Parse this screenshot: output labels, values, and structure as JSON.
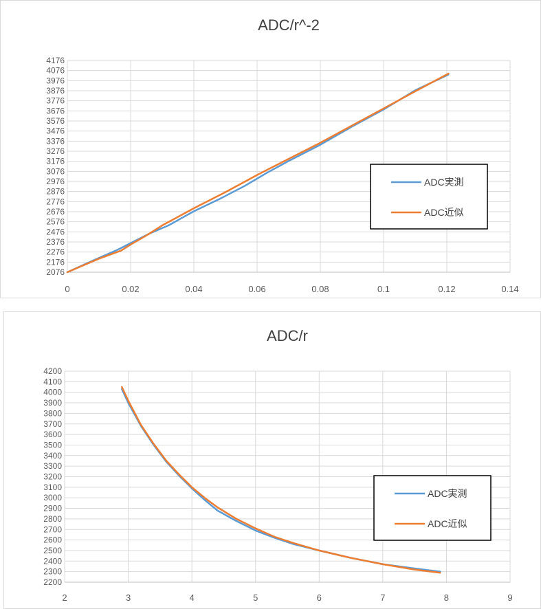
{
  "chart_data": [
    {
      "type": "line",
      "title": "ADC/r^-2",
      "xlabel": "",
      "ylabel": "",
      "xlim": [
        0,
        0.14
      ],
      "ylim": [
        2076,
        4176
      ],
      "x_ticks": [
        "0",
        "0.02",
        "0.04",
        "0.06",
        "0.08",
        "0.1",
        "0.12",
        "0.14"
      ],
      "y_ticks": [
        "2076",
        "2176",
        "2276",
        "2376",
        "2476",
        "2576",
        "2676",
        "2776",
        "2876",
        "2976",
        "3076",
        "3176",
        "3276",
        "3376",
        "3476",
        "3576",
        "3676",
        "3776",
        "3876",
        "3976",
        "4076",
        "4176"
      ],
      "grid": true,
      "legend_position": "right",
      "series": [
        {
          "name": "ADC実測",
          "color": "#5b9bd5",
          "x": [
            0,
            0.008,
            0.016,
            0.021,
            0.026,
            0.032,
            0.04,
            0.048,
            0.056,
            0.063,
            0.07,
            0.08,
            0.09,
            0.1,
            0.11,
            0.1205
          ],
          "y": [
            2076,
            2190,
            2300,
            2380,
            2460,
            2540,
            2680,
            2800,
            2930,
            3060,
            3180,
            3340,
            3520,
            3690,
            3880,
            4036
          ]
        },
        {
          "name": "ADC近似",
          "color": "#ed7d31",
          "x": [
            0,
            0.01,
            0.017,
            0.02,
            0.025,
            0.03,
            0.04,
            0.05,
            0.06,
            0.07,
            0.08,
            0.09,
            0.1,
            0.11,
            0.1205
          ],
          "y": [
            2076,
            2210,
            2290,
            2350,
            2440,
            2540,
            2710,
            2870,
            3040,
            3200,
            3360,
            3530,
            3700,
            3870,
            4046
          ]
        }
      ]
    },
    {
      "type": "line",
      "title": "ADC/r",
      "xlabel": "",
      "ylabel": "",
      "xlim": [
        2,
        9
      ],
      "ylim": [
        2200,
        4200
      ],
      "x_ticks": [
        "2",
        "3",
        "4",
        "5",
        "6",
        "7",
        "8",
        "9"
      ],
      "y_ticks": [
        "2200",
        "2300",
        "2400",
        "2500",
        "2600",
        "2700",
        "2800",
        "2900",
        "3000",
        "3100",
        "3200",
        "3300",
        "3400",
        "3500",
        "3600",
        "3700",
        "3800",
        "3900",
        "4000",
        "4100",
        "4200"
      ],
      "grid": true,
      "legend_position": "right",
      "series": [
        {
          "name": "ADC実測",
          "color": "#5b9bd5",
          "x": [
            2.9,
            3.0,
            3.2,
            3.4,
            3.6,
            3.8,
            4.0,
            4.2,
            4.4,
            4.7,
            5.0,
            5.3,
            5.6,
            6.0,
            6.5,
            7.0,
            7.5,
            7.9
          ],
          "y": [
            4030,
            3900,
            3680,
            3500,
            3340,
            3210,
            3090,
            2980,
            2880,
            2780,
            2690,
            2620,
            2560,
            2500,
            2430,
            2370,
            2330,
            2300
          ]
        },
        {
          "name": "ADC近似",
          "color": "#ed7d31",
          "x": [
            2.9,
            3.0,
            3.2,
            3.4,
            3.6,
            3.8,
            4.0,
            4.2,
            4.4,
            4.7,
            5.0,
            5.3,
            5.6,
            6.0,
            6.5,
            7.0,
            7.5,
            7.9
          ],
          "y": [
            4050,
            3920,
            3690,
            3510,
            3350,
            3220,
            3100,
            3000,
            2910,
            2800,
            2710,
            2630,
            2570,
            2500,
            2430,
            2370,
            2320,
            2290
          ]
        }
      ]
    }
  ]
}
